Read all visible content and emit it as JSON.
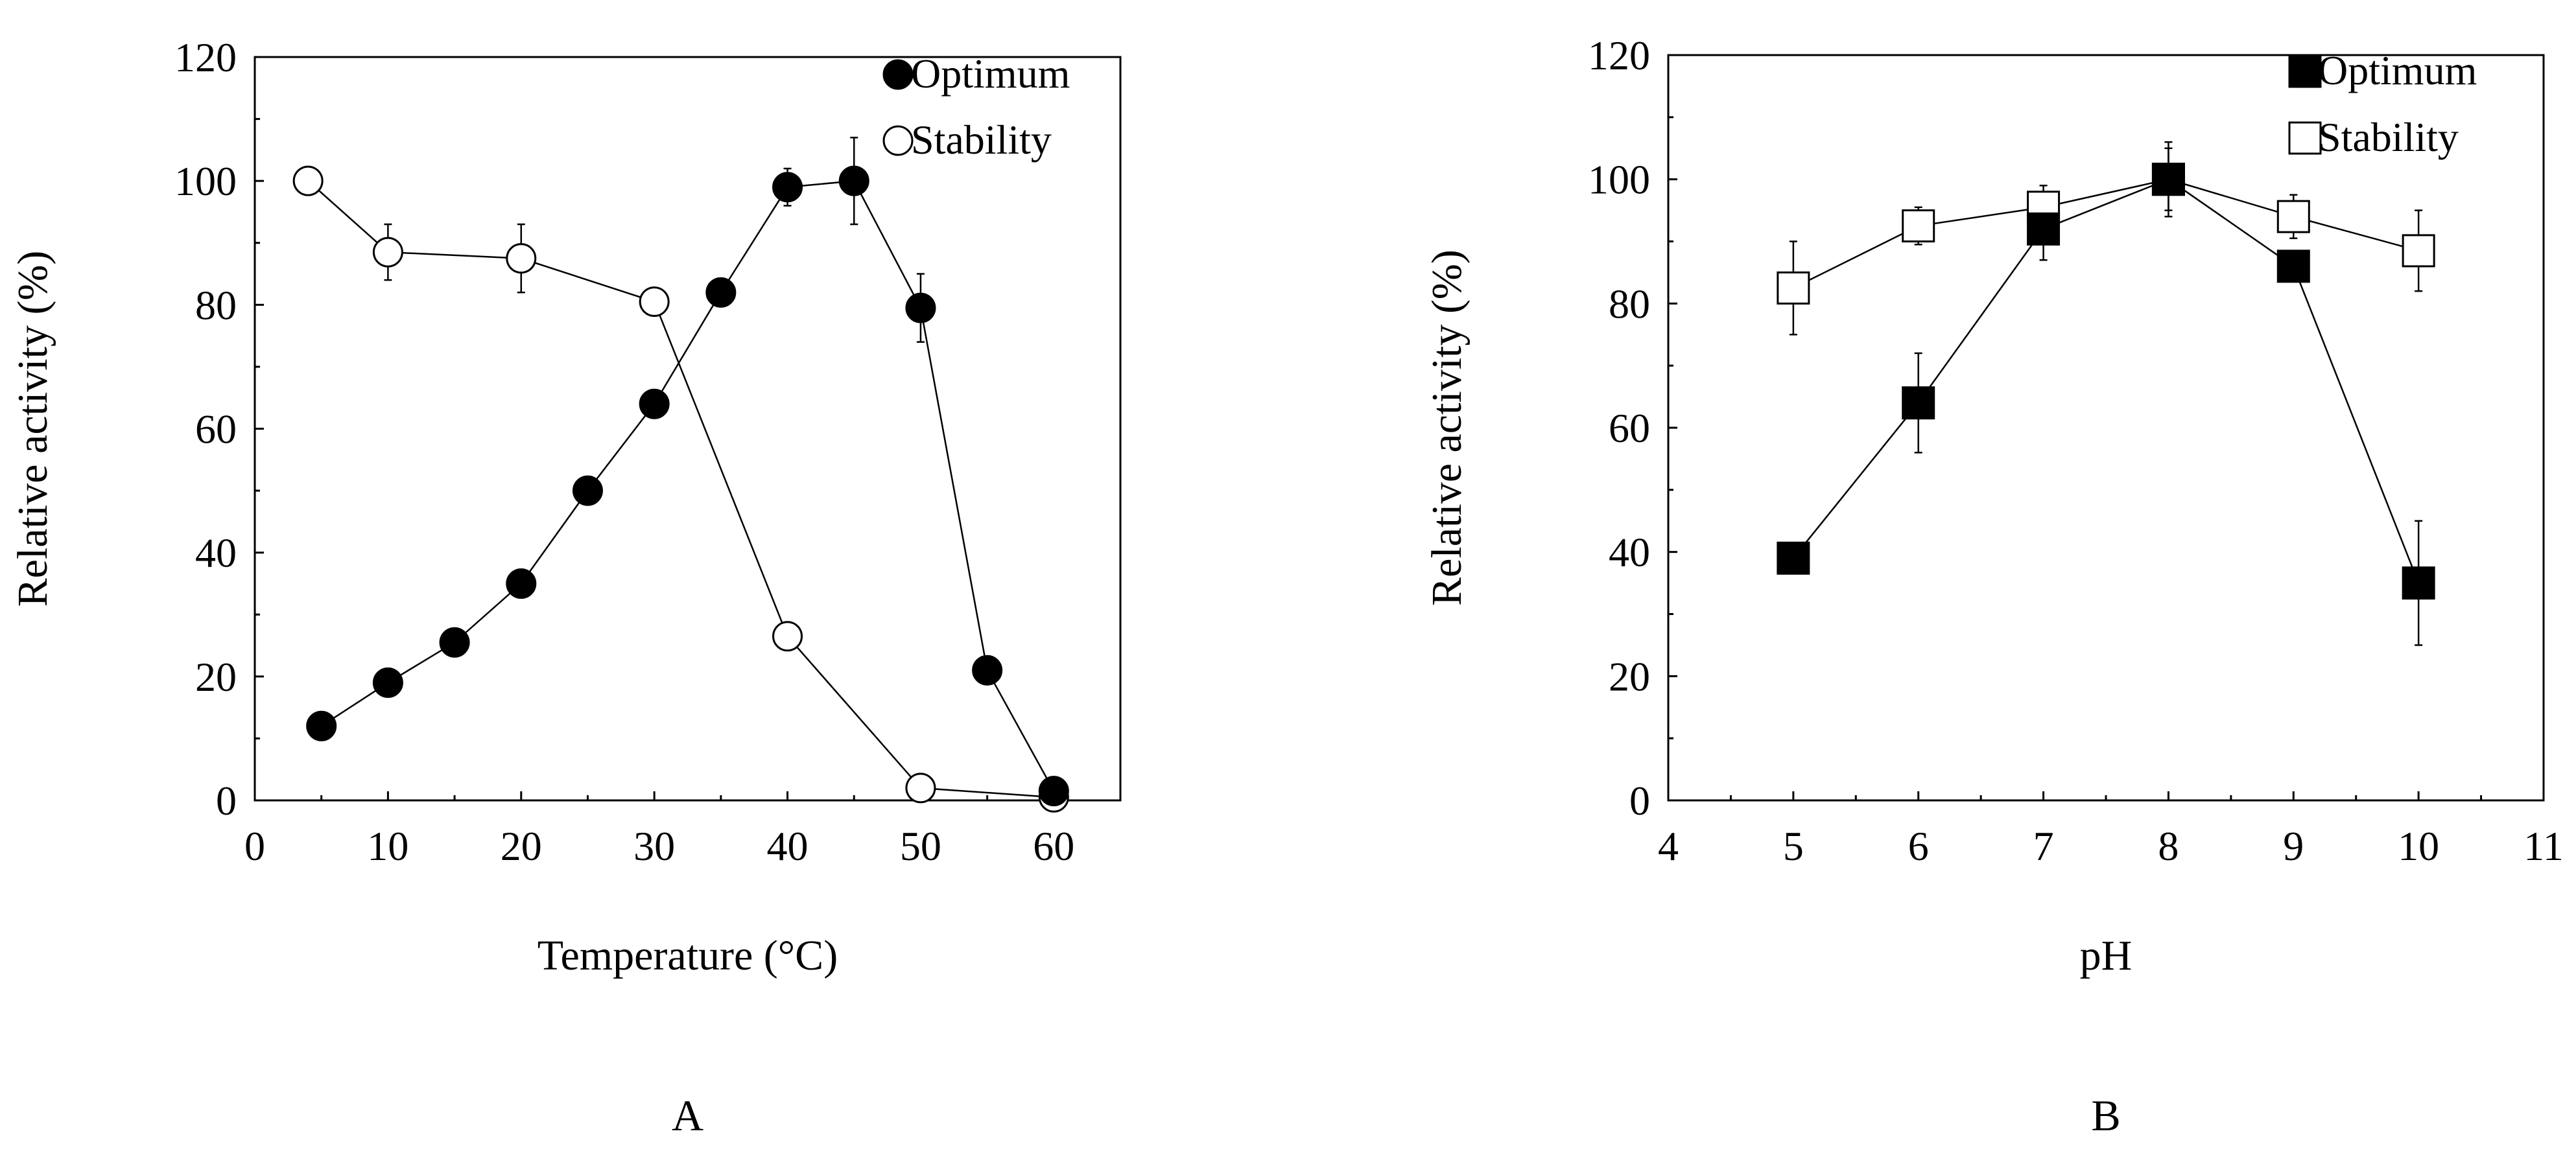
{
  "chart_data": [
    {
      "type": "line",
      "panel_label": "A",
      "xlabel": "Temperature (°C)",
      "ylabel": "Relative activity (%)",
      "xlim": [
        0,
        65
      ],
      "ylim": [
        0,
        120
      ],
      "xticks": [
        0,
        10,
        20,
        30,
        40,
        50,
        60
      ],
      "yticks": [
        0,
        20,
        40,
        60,
        80,
        100,
        120
      ],
      "legend_position": "top-right",
      "series": [
        {
          "name": "Optimum",
          "marker": "circle",
          "fill": "#000000",
          "x": [
            5,
            10,
            15,
            20,
            25,
            30,
            35,
            40,
            45,
            50,
            55,
            60
          ],
          "y": [
            12,
            19,
            25.5,
            35,
            50,
            64,
            82,
            99,
            100,
            79.5,
            21,
            1.5
          ],
          "err": [
            0,
            0,
            0,
            0,
            0,
            0,
            0,
            3,
            7,
            5.5,
            0,
            0
          ]
        },
        {
          "name": "Stability",
          "marker": "circle",
          "fill": "#ffffff",
          "x": [
            4,
            10,
            20,
            30,
            40,
            50,
            60
          ],
          "y": [
            100,
            88.5,
            87.5,
            80.5,
            26.5,
            2,
            0.5
          ],
          "err": [
            0,
            4.5,
            5.5,
            0,
            0,
            0,
            0
          ]
        }
      ]
    },
    {
      "type": "line",
      "panel_label": "B",
      "xlabel": "pH",
      "ylabel": "Relative activity (%)",
      "xlim": [
        4,
        11
      ],
      "ylim": [
        0,
        120
      ],
      "xticks": [
        4,
        5,
        6,
        7,
        8,
        9,
        10,
        11
      ],
      "yticks": [
        0,
        20,
        40,
        60,
        80,
        100,
        120
      ],
      "legend_position": "top-right",
      "series": [
        {
          "name": "Optimum",
          "marker": "square",
          "fill": "#000000",
          "x": [
            5,
            6,
            7,
            8,
            9,
            10
          ],
          "y": [
            39,
            64,
            92,
            100,
            86,
            35
          ],
          "err": [
            0,
            8,
            5,
            5,
            0,
            10
          ]
        },
        {
          "name": "Stability",
          "marker": "square",
          "fill": "#ffffff",
          "x": [
            5,
            6,
            7,
            8,
            9,
            10
          ],
          "y": [
            82.5,
            92.5,
            95.5,
            100,
            94,
            88.5
          ],
          "err": [
            7.5,
            3,
            3.5,
            6,
            3.5,
            6.5
          ]
        }
      ]
    }
  ]
}
